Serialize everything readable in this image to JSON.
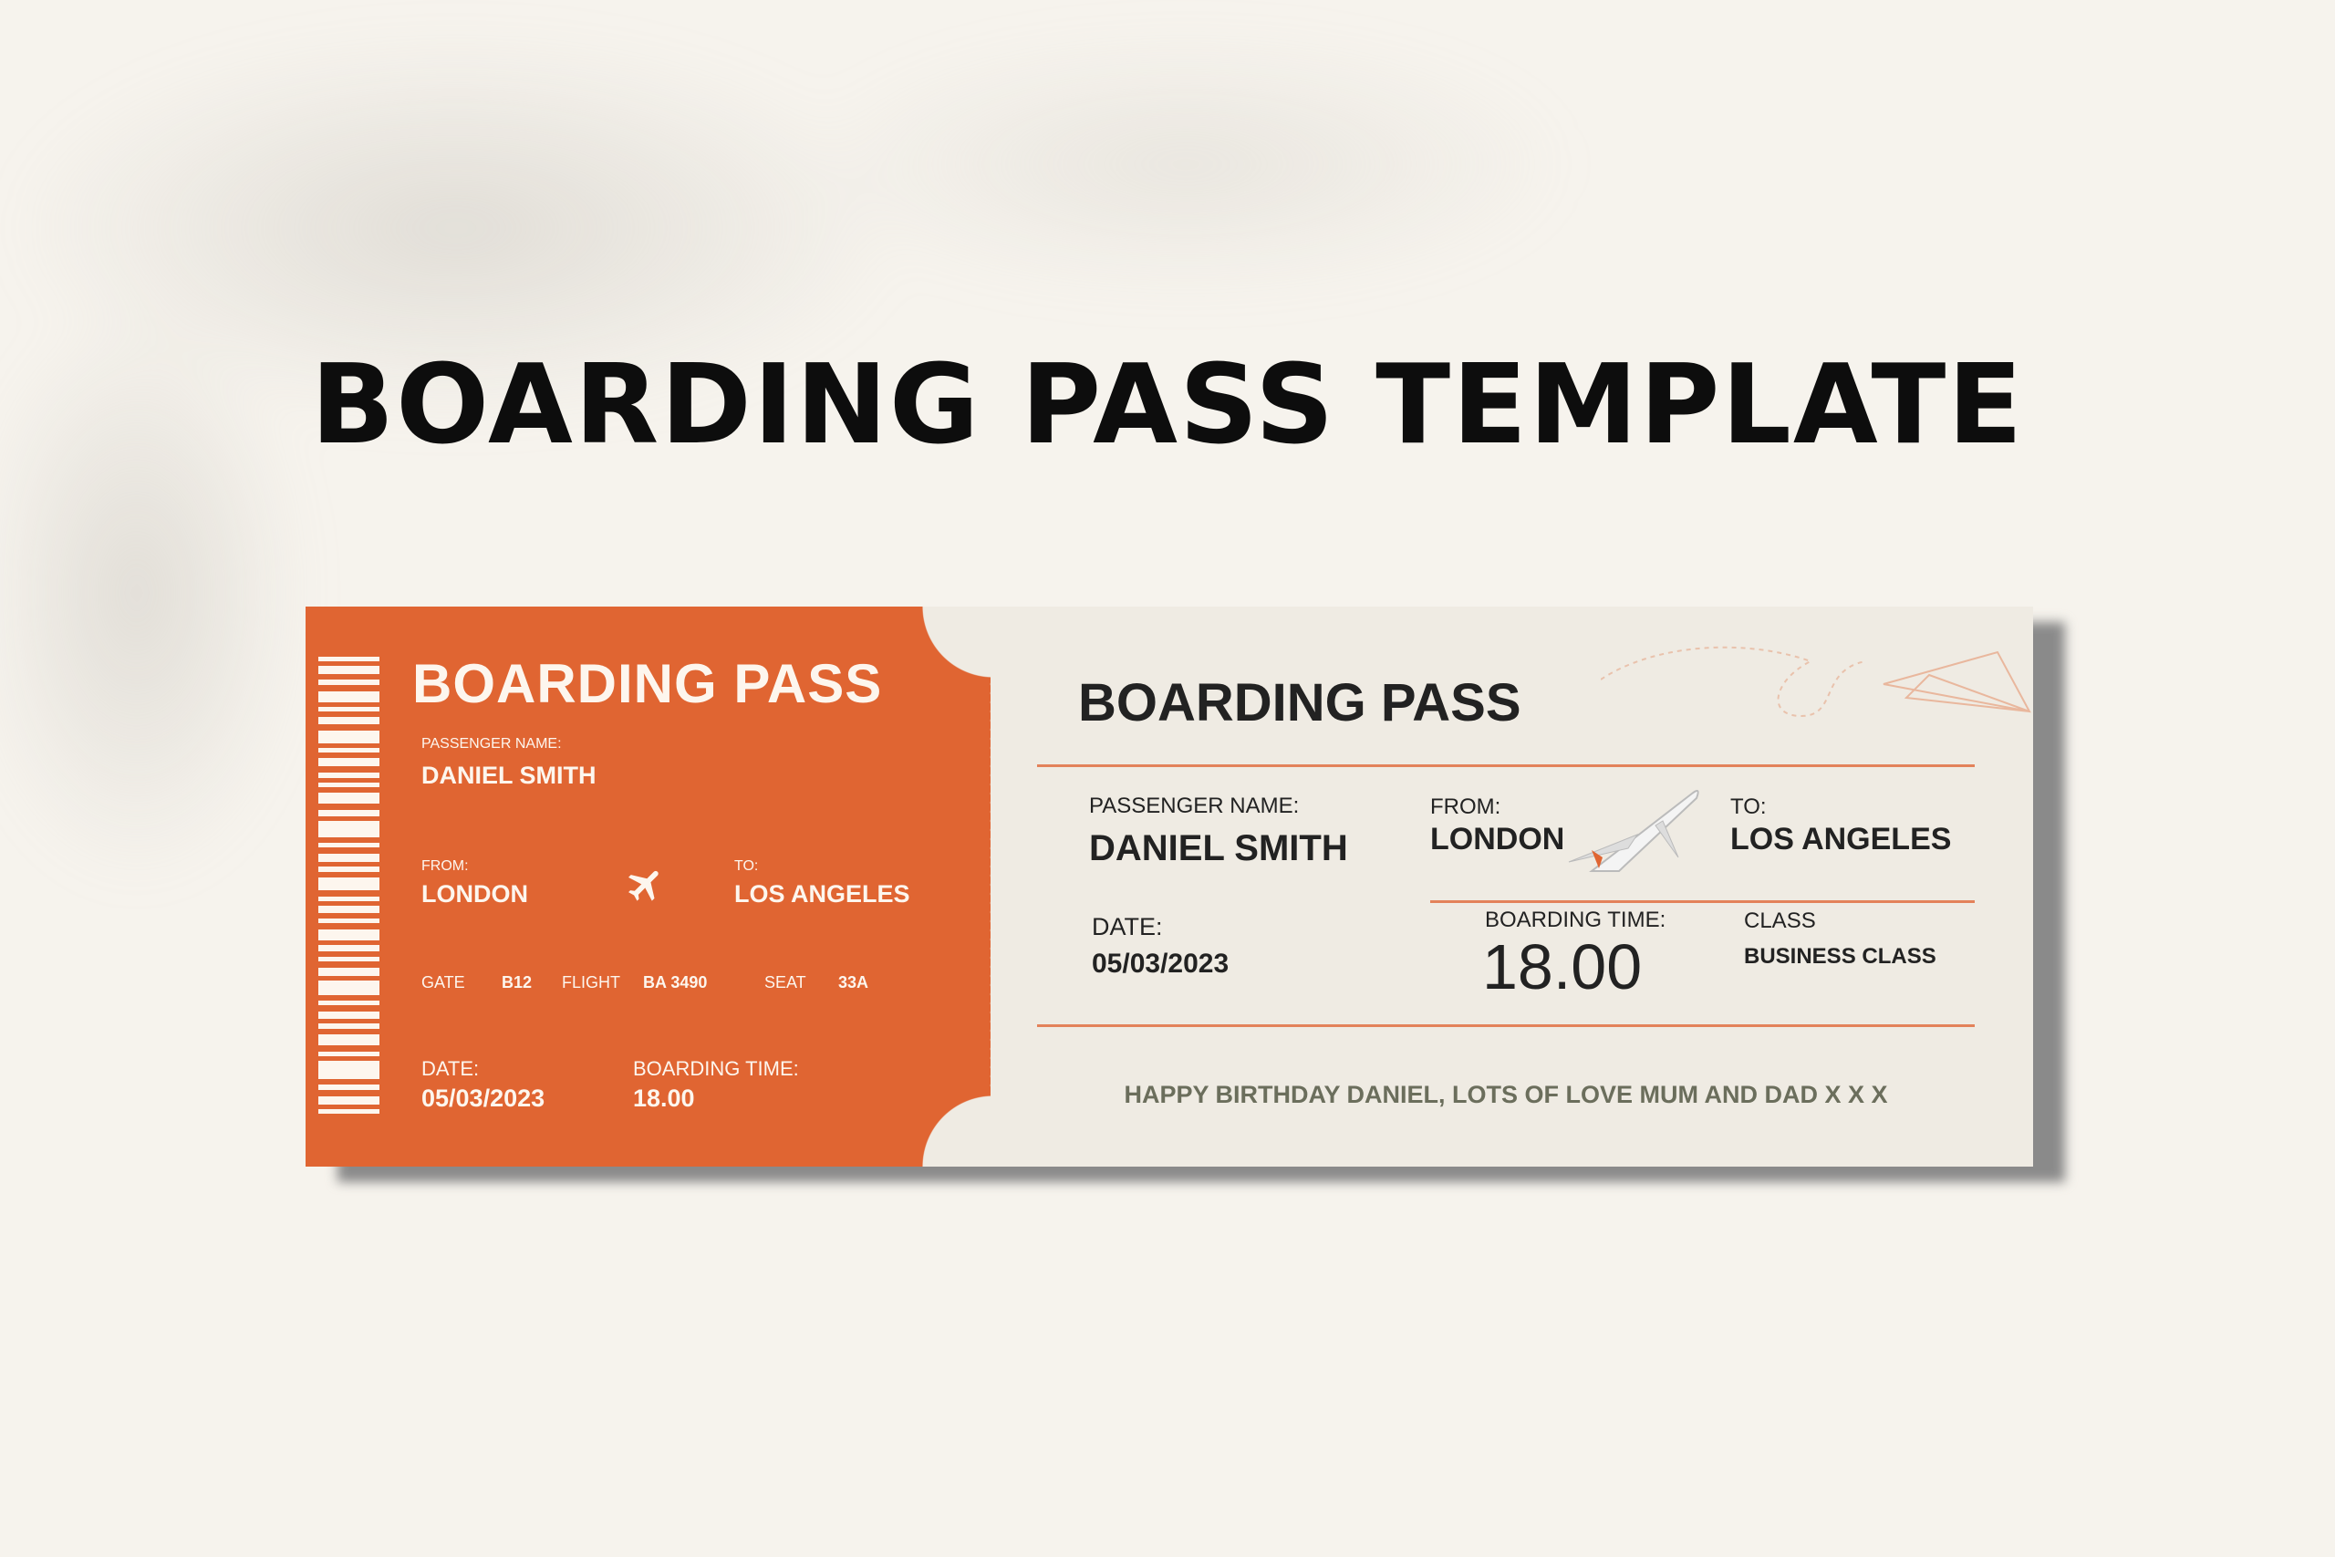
{
  "title": "BOARDING PASS TEMPLATE",
  "colors": {
    "accent": "#e06532",
    "ticket_bg": "#efebe3",
    "page_bg": "#f6f3ed",
    "message": "#6b6e5c"
  },
  "stub": {
    "heading": "BOARDING PASS",
    "passenger_label": "PASSENGER NAME:",
    "passenger": "DANIEL SMITH",
    "from_label": "FROM:",
    "from": "LONDON",
    "to_label": "TO:",
    "to": "LOS ANGELES",
    "gate_label": "GATE",
    "gate": "B12",
    "flight_label": "FLIGHT",
    "flight": "BA 3490",
    "seat_label": "SEAT",
    "seat": "33A",
    "date_label": "DATE:",
    "date": "05/03/2023",
    "time_label": "BOARDING TIME:",
    "time": "18.00",
    "icons": [
      "barcode-icon",
      "airplane-icon"
    ]
  },
  "main": {
    "heading": "BOARDING PASS",
    "passenger_label": "PASSENGER NAME:",
    "passenger": "DANIEL SMITH",
    "from_label": "FROM:",
    "from": "LONDON",
    "to_label": "TO:",
    "to": "LOS ANGELES",
    "date_label": "DATE:",
    "date": "05/03/2023",
    "time_label": "BOARDING TIME:",
    "time": "18.00",
    "class_label": "CLASS",
    "class": "BUSINESS CLASS",
    "message": "HAPPY BIRTHDAY DANIEL, LOTS OF LOVE MUM AND DAD X X X",
    "icons": [
      "paper-plane-icon",
      "airplane-illustration-icon"
    ]
  }
}
